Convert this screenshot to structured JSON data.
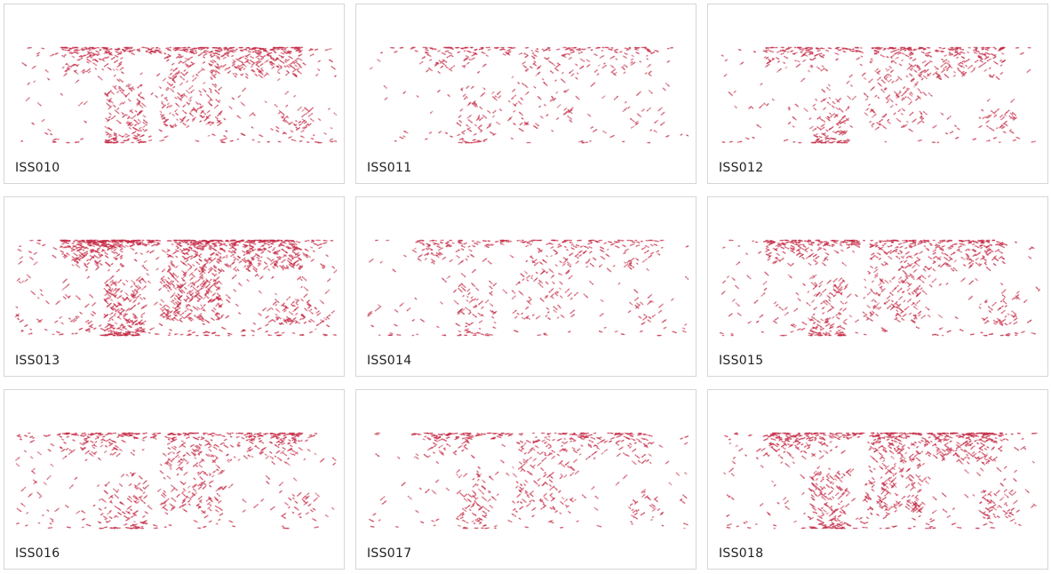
{
  "panels": [
    {
      "label": "ISS010"
    },
    {
      "label": "ISS011"
    },
    {
      "label": "ISS012"
    },
    {
      "label": "ISS013"
    },
    {
      "label": "ISS014"
    },
    {
      "label": "ISS015"
    },
    {
      "label": "ISS016"
    },
    {
      "label": "ISS017"
    },
    {
      "label": "ISS018"
    }
  ]
}
